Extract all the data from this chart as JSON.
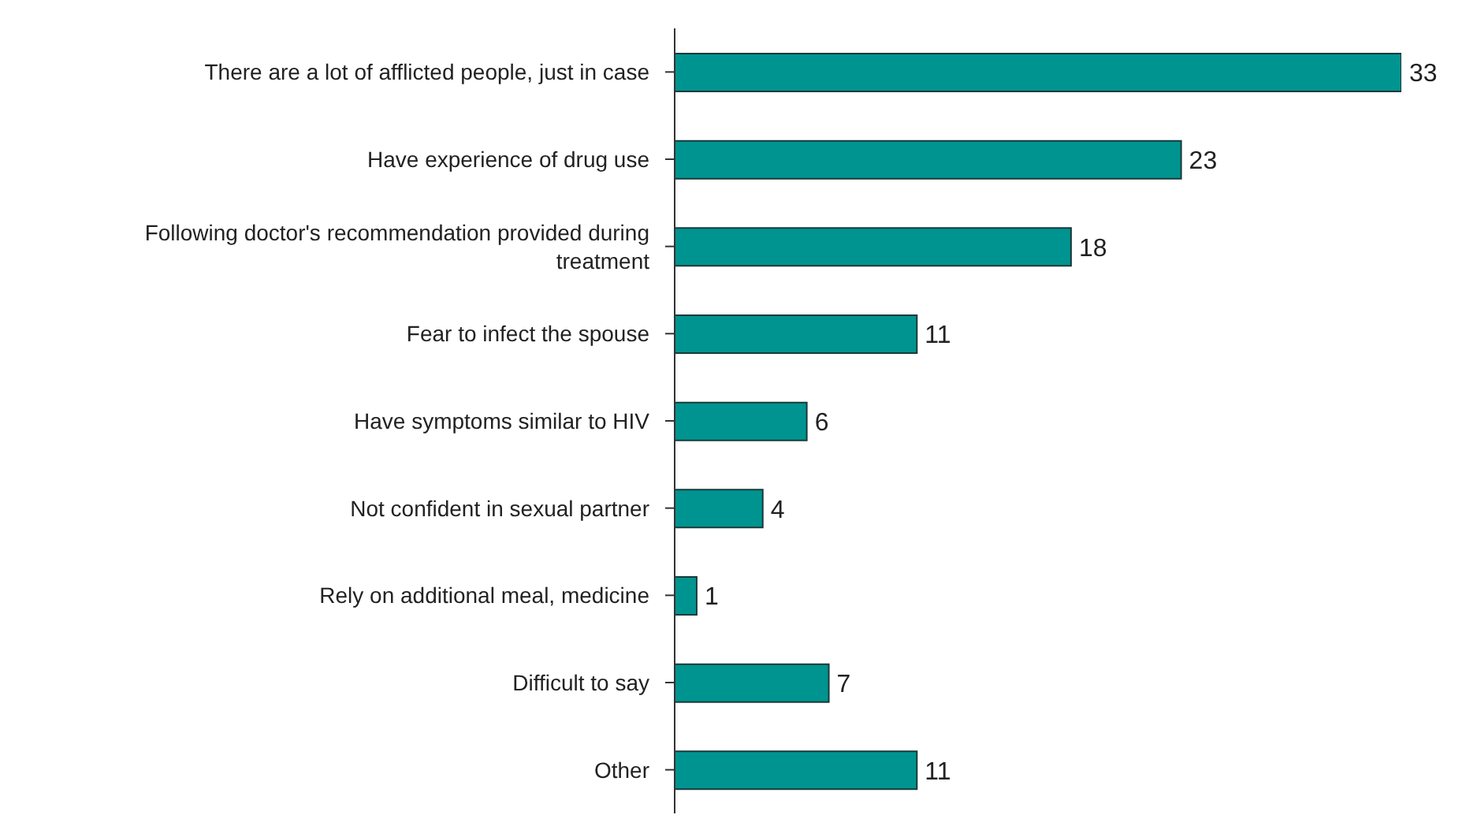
{
  "chart_data": {
    "type": "bar",
    "orientation": "horizontal",
    "categories": [
      "There are a lot of afflicted people, just in case",
      "Have experience of drug use",
      "Following doctor's recommendation provided during treatment",
      "Fear to infect the spouse",
      "Have symptoms similar to HIV",
      "Not confident in sexual partner",
      "Rely on additional meal, medicine",
      "Difficult to say",
      "Other"
    ],
    "values": [
      33,
      23,
      18,
      11,
      6,
      4,
      1,
      7,
      11
    ],
    "color": "#009490",
    "data_labels": true
  }
}
